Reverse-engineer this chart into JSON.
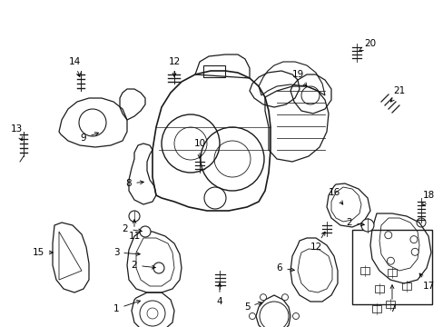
{
  "background": "#ffffff",
  "lc": "#1a1a1a",
  "figsize": [
    4.89,
    3.6
  ],
  "dpi": 100,
  "xlim": [
    0,
    489
  ],
  "ylim": [
    0,
    360
  ]
}
